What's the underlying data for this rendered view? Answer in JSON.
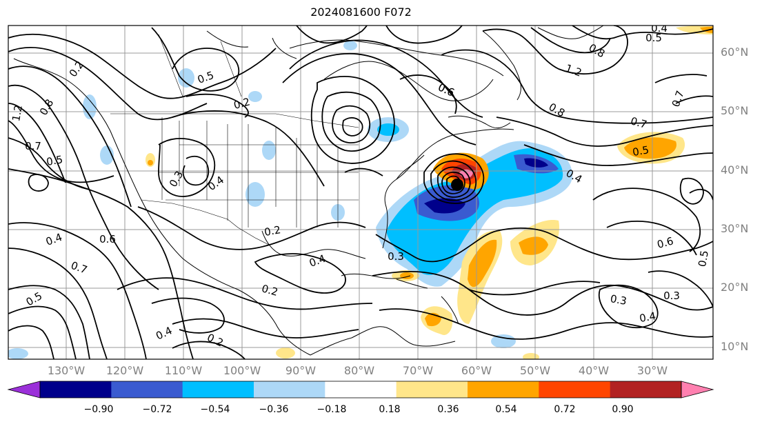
{
  "title": "2024081600 F072",
  "latitude_labels": [
    "60°N",
    "50°N",
    "40°N",
    "30°N",
    "20°N",
    "10°N"
  ],
  "longitude_labels": [
    "130°W",
    "120°W",
    "110°W",
    "100°W",
    "90°W",
    "80°W",
    "70°W",
    "60°W",
    "50°W",
    "40°W",
    "30°W"
  ],
  "colorbar": {
    "ticks": [
      "−0.90",
      "−0.72",
      "−0.54",
      "−0.36",
      "−0.18",
      "0.18",
      "0.36",
      "0.54",
      "0.72",
      "0.90"
    ],
    "colors": [
      "#9b30d9",
      "#00008b",
      "#3a5bd0",
      "#00bfff",
      "#add8f7",
      "#ffffff",
      "#ffe68a",
      "#ffa500",
      "#ff4500",
      "#b22222",
      "#ff80b0"
    ]
  },
  "contour_labels": [
    {
      "text": "0.2"
    },
    {
      "text": "0.5"
    },
    {
      "text": "0.2"
    },
    {
      "text": "0.8"
    },
    {
      "text": "1.2"
    },
    {
      "text": "0.7"
    },
    {
      "text": "0.5"
    },
    {
      "text": "0.3"
    },
    {
      "text": "0.4"
    },
    {
      "text": "0.4"
    },
    {
      "text": "0.6"
    },
    {
      "text": "0.7"
    },
    {
      "text": "0.5"
    },
    {
      "text": "0.4"
    },
    {
      "text": "0.2"
    },
    {
      "text": "0.2"
    },
    {
      "text": "0.4"
    },
    {
      "text": "0.2"
    },
    {
      "text": "0.3"
    },
    {
      "text": "0.6"
    },
    {
      "text": "0.8"
    },
    {
      "text": "0.7"
    },
    {
      "text": "0.5"
    },
    {
      "text": "0.4"
    },
    {
      "text": "0.6"
    },
    {
      "text": "0.3"
    },
    {
      "text": "0.3"
    },
    {
      "text": "0.4"
    },
    {
      "text": "0.5"
    },
    {
      "text": "0.7"
    },
    {
      "text": "1.2"
    },
    {
      "text": "0.8"
    },
    {
      "text": "0.5"
    },
    {
      "text": "0.4"
    },
    {
      "text": "0.6"
    }
  ],
  "storm_marker": {
    "lon": -65,
    "lat": 37.5
  }
}
